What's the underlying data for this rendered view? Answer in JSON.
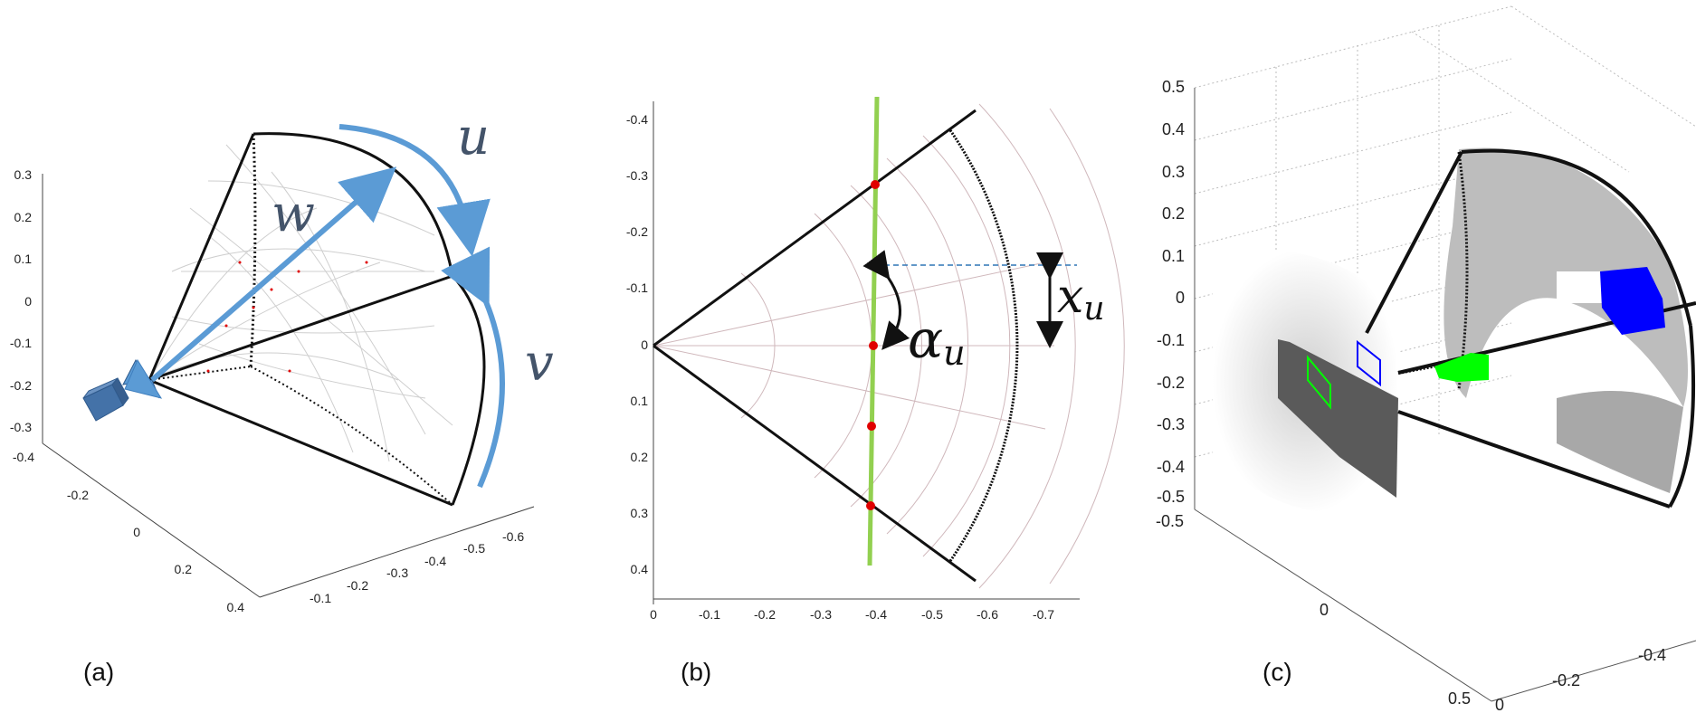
{
  "panels": {
    "a": {
      "caption": "(a)",
      "labels": {
        "u": "u",
        "v": "v",
        "w": "w"
      },
      "z_ticks": [
        "0.3",
        "0.2",
        "0.1",
        "0",
        "-0.1",
        "-0.2",
        "-0.3"
      ],
      "y_ticks": [
        "-0.4",
        "-0.2",
        "0",
        "0.2",
        "0.4"
      ],
      "x_ticks": [
        "-0.1",
        "-0.2",
        "-0.3",
        "-0.4",
        "-0.5",
        "-0.6"
      ]
    },
    "b": {
      "caption": "(b)",
      "labels": {
        "alpha": "α",
        "alpha_sub": "u",
        "x": "x",
        "x_sub": "u"
      },
      "y_ticks": [
        "-0.4",
        "-0.3",
        "-0.2",
        "-0.1",
        "0",
        "0.1",
        "0.2",
        "0.3",
        "0.4"
      ],
      "x_ticks": [
        "0",
        "-0.1",
        "-0.2",
        "-0.3",
        "-0.4",
        "-0.5",
        "-0.6",
        "-0.7"
      ]
    },
    "c": {
      "caption": "(c)",
      "z_ticks": [
        "0.5",
        "0.4",
        "0.3",
        "0.2",
        "0.1",
        "0",
        "-0.1",
        "-0.2",
        "-0.3",
        "-0.4",
        "-0.5"
      ],
      "y_ticks": [
        "-0.5",
        "0",
        "0.5"
      ],
      "x_ticks": [
        "0",
        "-0.2",
        "-0.4"
      ]
    }
  },
  "colors": {
    "arrow_blue": "#5b9bd5",
    "label_slate": "#44546a",
    "scan_line_green": "#92d050",
    "sample_red": "#e00000",
    "dashed_blue": "#2e75b6",
    "object_blue": "#0000ff",
    "object_green": "#00ff00"
  },
  "icons": [
    "camera-icon"
  ]
}
